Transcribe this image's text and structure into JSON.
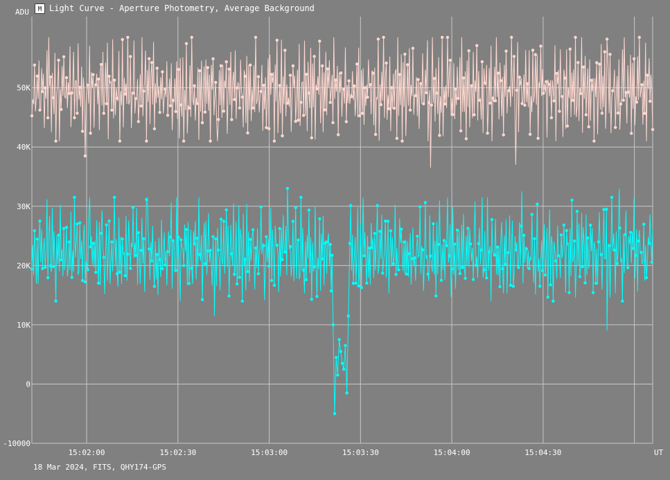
{
  "window": {
    "title": "Light Curve - Aperture Photometry, Average Background",
    "icon": "light-curve-app-icon"
  },
  "footer": {
    "caption": "18 Mar 2024, FITS, QHY174-GPS"
  },
  "colors": {
    "background": "#808080",
    "grid": "#c8c8c8",
    "series_upper": "#ffd8d0",
    "series_lower": "#00ffff",
    "text": "#ffffff"
  },
  "chart_data": {
    "type": "line",
    "ylabel": "ADU",
    "xlabel": "UT",
    "ylim": [
      -10000,
      62000
    ],
    "xlim_seconds_after_15_01_42": [
      0,
      204
    ],
    "y_ticks": [
      {
        "value": 50000,
        "label": "50K"
      },
      {
        "value": 40000,
        "label": "40K"
      },
      {
        "value": 30000,
        "label": "30K"
      },
      {
        "value": 20000,
        "label": "20K"
      },
      {
        "value": 10000,
        "label": "10K"
      },
      {
        "value": 0,
        "label": "0"
      },
      {
        "value": -10000,
        "label": "-10000"
      }
    ],
    "x_ticks": [
      {
        "label": "15:02:00",
        "value_seconds": 18
      },
      {
        "label": "15:02:30",
        "value_seconds": 48
      },
      {
        "label": "15:03:00",
        "value_seconds": 78
      },
      {
        "label": "15:03:30",
        "value_seconds": 108
      },
      {
        "label": "15:04:00",
        "value_seconds": 138
      },
      {
        "label": "15:04:30",
        "value_seconds": 168
      }
    ],
    "extra_gridline_seconds": 198,
    "grid": true,
    "series": [
      {
        "color": "#ffd8d0",
        "mean": 49500,
        "typical_range": [
          41000,
          58500
        ],
        "values_sample": [
          48200,
          51000,
          47000,
          53000,
          43500,
          50500,
          52000,
          47800,
          54000,
          44500,
          49000,
          51800,
          46500,
          55000,
          42000,
          50200,
          48800,
          53500,
          45500,
          57500,
          47200,
          50800,
          43000,
          52500,
          49600,
          46000,
          54800,
          40800,
          51400,
          48400,
          55800,
          44000,
          50000,
          47600,
          53200,
          45800,
          58200,
          46800,
          49400,
          52800,
          43800,
          50600,
          48000,
          56000,
          42600,
          51200,
          47400,
          54400,
          45200,
          49800,
          52200,
          44400,
          57000,
          46400,
          50400,
          48600,
          53800,
          41600,
          51600,
          47000,
          55400,
          44800,
          49200,
          52600,
          46200,
          58000,
          43200,
          50800,
          48200,
          54200,
          45600,
          51000
        ],
        "notable_points": [
          {
            "x": 17.5,
            "y": 38500
          },
          {
            "x": 61.0,
            "y": 41000
          },
          {
            "x": 131.0,
            "y": 36500
          },
          {
            "x": 159.0,
            "y": 37000
          },
          {
            "x": 130.0,
            "y": 58000
          },
          {
            "x": 189.0,
            "y": 58200
          }
        ]
      },
      {
        "color": "#00ffff",
        "mean": 21500,
        "typical_range": [
          14000,
          31500
        ],
        "values_sample": [
          20500,
          23500,
          18000,
          26500,
          21000,
          19500,
          25000,
          17500,
          22500,
          28000,
          20000,
          24000,
          16500,
          21800,
          27000,
          19000,
          23000,
          29500,
          18500,
          22000,
          25500,
          17000,
          20800,
          31500,
          19800,
          24500,
          21500,
          16000,
          26000,
          20200,
          22800,
          18800,
          27500,
          21200,
          23800,
          15500,
          25800,
          19400,
          22400,
          28500,
          20600,
          17800,
          24200,
          21600,
          26800,
          18200,
          23200,
          20400,
          30500,
          19200,
          22600,
          25200,
          16800,
          21400,
          27800,
          20100,
          24800,
          18600,
          22200,
          29000,
          19600,
          23600,
          21000,
          17200,
          25600,
          20800,
          26200,
          22000,
          18400,
          24400
        ],
        "dip_points": [
          {
            "x": 99.0,
            "y": 10000
          },
          {
            "x": 99.5,
            "y": -5000
          },
          {
            "x": 100.0,
            "y": 4500
          },
          {
            "x": 100.5,
            "y": 1500
          },
          {
            "x": 101.0,
            "y": 7500
          },
          {
            "x": 101.5,
            "y": 5500
          },
          {
            "x": 102.0,
            "y": 3500
          },
          {
            "x": 102.5,
            "y": 2500
          },
          {
            "x": 103.0,
            "y": 6500
          },
          {
            "x": 103.5,
            "y": -1500
          },
          {
            "x": 104.0,
            "y": 11500
          }
        ],
        "notable_points": [
          {
            "x": 84.0,
            "y": 33000
          },
          {
            "x": 38.0,
            "y": 31500
          },
          {
            "x": 19.0,
            "y": 31500
          },
          {
            "x": 161.0,
            "y": 32500
          },
          {
            "x": 193.0,
            "y": 33000
          },
          {
            "x": 189.0,
            "y": 9000
          },
          {
            "x": 60.0,
            "y": 11500
          }
        ]
      }
    ]
  }
}
